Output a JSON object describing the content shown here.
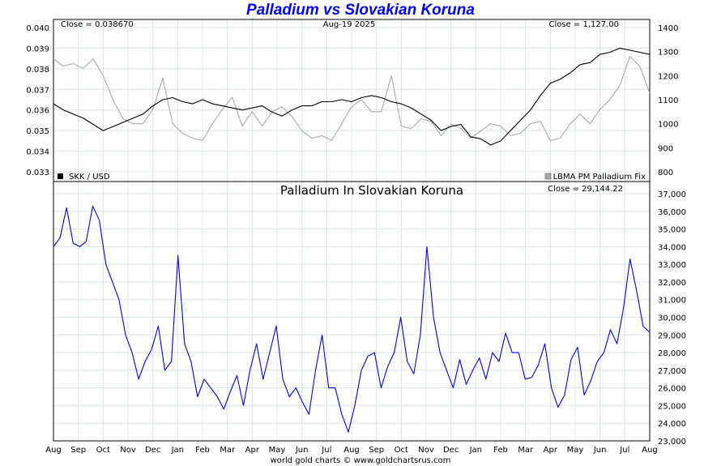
{
  "title": "Palladium vs Slovakian Koruna",
  "footer": "world gold charts © www.goldchartsrus.com",
  "colors": {
    "title": "#0000ff",
    "skk": "#000000",
    "palladium": "#aaaaaa",
    "ratio": "#0000ff",
    "grid": "#d8e4ec"
  },
  "chart_data": [
    {
      "type": "line",
      "title": "",
      "date_label": "Aug-19  2025",
      "left_close": "Close = 0.038670",
      "right_close": "Close = 1,127.00",
      "legend_left": "SKK / USD",
      "legend_right": "LBMA PM Palladium Fix",
      "legend_placement": "bottom",
      "x_ticks": [
        "Aug",
        "Sep",
        "Oct",
        "Nov",
        "Dec",
        "Jan",
        "Feb",
        "Mar",
        "Apr",
        "May",
        "Jun",
        "Jul",
        "Aug",
        "Sep",
        "Oct",
        "Nov",
        "Dec",
        "Jan",
        "Feb",
        "Mar",
        "Apr",
        "May",
        "Jun",
        "Jul",
        "Aug"
      ],
      "y_left_ticks": [
        "0.040",
        "0.039",
        "0.038",
        "0.037",
        "0.036",
        "0.035",
        "0.034",
        "0.033"
      ],
      "y_left_lim": [
        0.033,
        0.04
      ],
      "y_right_ticks": [
        "1400",
        "1300",
        "1200",
        "1100",
        "1000",
        "900",
        "800"
      ],
      "y_right_lim": [
        800,
        1400
      ],
      "grid": true,
      "series": [
        {
          "name": "SKK / USD",
          "axis": "left",
          "values": [
            0.0363,
            0.036,
            0.0358,
            0.0356,
            0.0353,
            0.035,
            0.0352,
            0.0354,
            0.0356,
            0.0358,
            0.0362,
            0.0365,
            0.0366,
            0.0364,
            0.0363,
            0.0365,
            0.0363,
            0.0362,
            0.0361,
            0.036,
            0.0361,
            0.0362,
            0.0359,
            0.0357,
            0.036,
            0.0362,
            0.0362,
            0.0364,
            0.0364,
            0.0365,
            0.0364,
            0.0366,
            0.0367,
            0.0366,
            0.0364,
            0.0363,
            0.0361,
            0.0358,
            0.0355,
            0.035,
            0.0352,
            0.0353,
            0.0347,
            0.0346,
            0.0343,
            0.0345,
            0.035,
            0.0355,
            0.036,
            0.0367,
            0.0373,
            0.0375,
            0.0378,
            0.0382,
            0.0383,
            0.0387,
            0.0388,
            0.039,
            0.0389,
            0.0388,
            0.0387
          ]
        },
        {
          "name": "LBMA PM Palladium Fix",
          "axis": "right",
          "values": [
            1270,
            1240,
            1250,
            1230,
            1270,
            1200,
            1100,
            1020,
            1000,
            1000,
            1060,
            1190,
            1000,
            960,
            940,
            930,
            1000,
            1060,
            1110,
            990,
            1050,
            990,
            1050,
            1070,
            1030,
            970,
            940,
            950,
            930,
            1000,
            1070,
            1100,
            1050,
            1050,
            1200,
            990,
            980,
            1020,
            1010,
            950,
            1000,
            980,
            940,
            970,
            1000,
            990,
            950,
            960,
            1000,
            1010,
            930,
            940,
            1000,
            1040,
            1000,
            1060,
            1100,
            1160,
            1280,
            1240,
            1127
          ]
        }
      ]
    },
    {
      "type": "line",
      "title": "Palladium In Slovakian Koruna",
      "right_close": "Close = 29,144.22",
      "x_ticks": [
        "Aug",
        "Sep",
        "Oct",
        "Nov",
        "Dec",
        "Jan",
        "Feb",
        "Mar",
        "Apr",
        "May",
        "Jun",
        "Jul",
        "Aug",
        "Sep",
        "Oct",
        "Nov",
        "Dec",
        "Jan",
        "Feb",
        "Mar",
        "Apr",
        "May",
        "Jun",
        "Jul",
        "Aug"
      ],
      "y_right_ticks": [
        "37,000",
        "36,000",
        "35,000",
        "34,000",
        "33,000",
        "32,000",
        "31,000",
        "30,000",
        "29,000",
        "28,000",
        "27,000",
        "26,000",
        "25,000",
        "24,000",
        "23,000"
      ],
      "ylim": [
        23000,
        37000
      ],
      "grid": true,
      "series": [
        {
          "name": "Palladium In Slovakian Koruna",
          "values": [
            34000,
            34500,
            36200,
            34200,
            34000,
            34300,
            36300,
            35500,
            33000,
            32000,
            31000,
            29000,
            28000,
            26500,
            27500,
            28200,
            29500,
            27000,
            27500,
            33500,
            28500,
            27500,
            25500,
            26500,
            26000,
            25500,
            24800,
            25800,
            26700,
            25000,
            27000,
            28500,
            26500,
            28000,
            29500,
            26500,
            25500,
            26000,
            25200,
            24500,
            27000,
            29000,
            26000,
            26000,
            24500,
            23500,
            25000,
            27000,
            27800,
            28000,
            26000,
            27200,
            28000,
            30000,
            27500,
            26800,
            29000,
            34000,
            30000,
            28000,
            27000,
            26000,
            27600,
            26200,
            27000,
            27700,
            26500,
            28000,
            27500,
            29100,
            28000,
            28000,
            26500,
            26600,
            27300,
            28500,
            26000,
            24900,
            25600,
            27600,
            28300,
            25600,
            26400,
            27500,
            28000,
            29300,
            28500,
            30500,
            33300,
            31500,
            29500,
            29144
          ]
        }
      ]
    }
  ]
}
